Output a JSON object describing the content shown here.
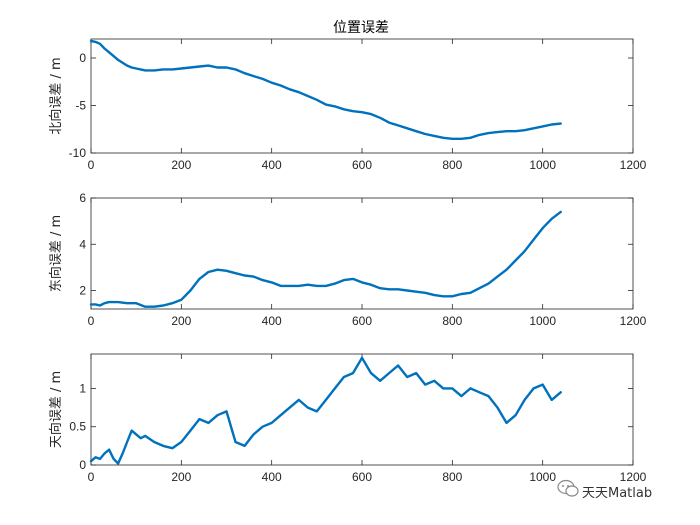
{
  "chart_data": [
    {
      "type": "line",
      "title": "位置误差",
      "xlabel": "",
      "ylabel": "北向误差 / m",
      "xlim": [
        0,
        1200
      ],
      "ylim": [
        -10,
        2
      ],
      "xticks": [
        "0",
        "200",
        "400",
        "600",
        "800",
        "1000",
        "1200"
      ],
      "yticks": [
        "-10",
        "-5",
        "0"
      ],
      "grid": false,
      "color": "#0072BD",
      "x": [
        0,
        10,
        20,
        30,
        40,
        50,
        60,
        70,
        80,
        90,
        100,
        110,
        120,
        140,
        160,
        180,
        200,
        220,
        240,
        260,
        280,
        300,
        320,
        340,
        360,
        380,
        400,
        420,
        440,
        460,
        480,
        500,
        520,
        540,
        560,
        580,
        600,
        620,
        640,
        660,
        680,
        700,
        720,
        740,
        760,
        780,
        800,
        820,
        840,
        860,
        880,
        900,
        920,
        940,
        960,
        980,
        1000,
        1020,
        1040
      ],
      "y": [
        1.8,
        1.7,
        1.5,
        1.0,
        0.6,
        0.2,
        -0.2,
        -0.5,
        -0.8,
        -1.0,
        -1.1,
        -1.2,
        -1.3,
        -1.3,
        -1.2,
        -1.2,
        -1.1,
        -1.0,
        -0.9,
        -0.8,
        -1.0,
        -1.0,
        -1.2,
        -1.6,
        -1.9,
        -2.2,
        -2.6,
        -2.9,
        -3.3,
        -3.6,
        -4.0,
        -4.4,
        -4.9,
        -5.1,
        -5.4,
        -5.6,
        -5.7,
        -5.9,
        -6.3,
        -6.8,
        -7.1,
        -7.4,
        -7.7,
        -8.0,
        -8.2,
        -8.4,
        -8.5,
        -8.5,
        -8.4,
        -8.1,
        -7.9,
        -7.8,
        -7.7,
        -7.7,
        -7.6,
        -7.4,
        -7.2,
        -7.0,
        -6.9
      ]
    },
    {
      "type": "line",
      "title": "",
      "xlabel": "",
      "ylabel": "东向误差 / m",
      "xlim": [
        0,
        1200
      ],
      "ylim": [
        1.2,
        6
      ],
      "xticks": [
        "0",
        "200",
        "400",
        "600",
        "800",
        "1000",
        "1200"
      ],
      "yticks": [
        "2",
        "4",
        "6"
      ],
      "grid": false,
      "color": "#0072BD",
      "x": [
        0,
        10,
        20,
        30,
        40,
        60,
        80,
        100,
        120,
        140,
        160,
        180,
        200,
        220,
        240,
        260,
        280,
        300,
        320,
        340,
        360,
        380,
        400,
        420,
        440,
        460,
        480,
        500,
        520,
        540,
        560,
        580,
        600,
        620,
        640,
        660,
        680,
        700,
        720,
        740,
        760,
        780,
        800,
        820,
        840,
        860,
        880,
        900,
        920,
        940,
        960,
        980,
        1000,
        1020,
        1040
      ],
      "y": [
        1.4,
        1.4,
        1.35,
        1.45,
        1.5,
        1.5,
        1.45,
        1.45,
        1.3,
        1.3,
        1.35,
        1.45,
        1.6,
        2.0,
        2.5,
        2.8,
        2.9,
        2.85,
        2.75,
        2.65,
        2.6,
        2.45,
        2.35,
        2.2,
        2.2,
        2.2,
        2.25,
        2.2,
        2.2,
        2.3,
        2.45,
        2.5,
        2.35,
        2.25,
        2.1,
        2.05,
        2.05,
        2.0,
        1.95,
        1.9,
        1.8,
        1.75,
        1.75,
        1.85,
        1.9,
        2.1,
        2.3,
        2.6,
        2.9,
        3.3,
        3.7,
        4.2,
        4.7,
        5.1,
        5.4
      ]
    },
    {
      "type": "line",
      "title": "",
      "xlabel": "",
      "ylabel": "天向误差 / m",
      "xlim": [
        0,
        1200
      ],
      "ylim": [
        0,
        1.45
      ],
      "xticks": [
        "0",
        "200",
        "400",
        "600",
        "800",
        "1000",
        "1200"
      ],
      "yticks": [
        "0",
        "0.5",
        "1"
      ],
      "grid": false,
      "color": "#0072BD",
      "x": [
        0,
        10,
        20,
        30,
        40,
        50,
        60,
        70,
        80,
        90,
        100,
        110,
        120,
        140,
        160,
        180,
        200,
        220,
        240,
        260,
        280,
        300,
        320,
        340,
        360,
        380,
        400,
        420,
        440,
        460,
        480,
        500,
        520,
        540,
        560,
        580,
        600,
        620,
        640,
        660,
        680,
        700,
        720,
        740,
        760,
        780,
        800,
        820,
        840,
        860,
        880,
        900,
        920,
        940,
        960,
        980,
        1000,
        1020,
        1040
      ],
      "y": [
        0.05,
        0.1,
        0.08,
        0.15,
        0.2,
        0.08,
        0.02,
        0.15,
        0.3,
        0.45,
        0.4,
        0.35,
        0.38,
        0.3,
        0.25,
        0.22,
        0.3,
        0.45,
        0.6,
        0.55,
        0.65,
        0.7,
        0.3,
        0.25,
        0.4,
        0.5,
        0.55,
        0.65,
        0.75,
        0.85,
        0.75,
        0.7,
        0.85,
        1.0,
        1.15,
        1.2,
        1.4,
        1.2,
        1.1,
        1.2,
        1.3,
        1.15,
        1.2,
        1.05,
        1.1,
        1.0,
        1.0,
        0.9,
        1.0,
        0.95,
        0.9,
        0.75,
        0.55,
        0.65,
        0.85,
        1.0,
        1.05,
        0.85,
        0.95
      ]
    }
  ],
  "watermark": {
    "text": "天天Matlab"
  }
}
